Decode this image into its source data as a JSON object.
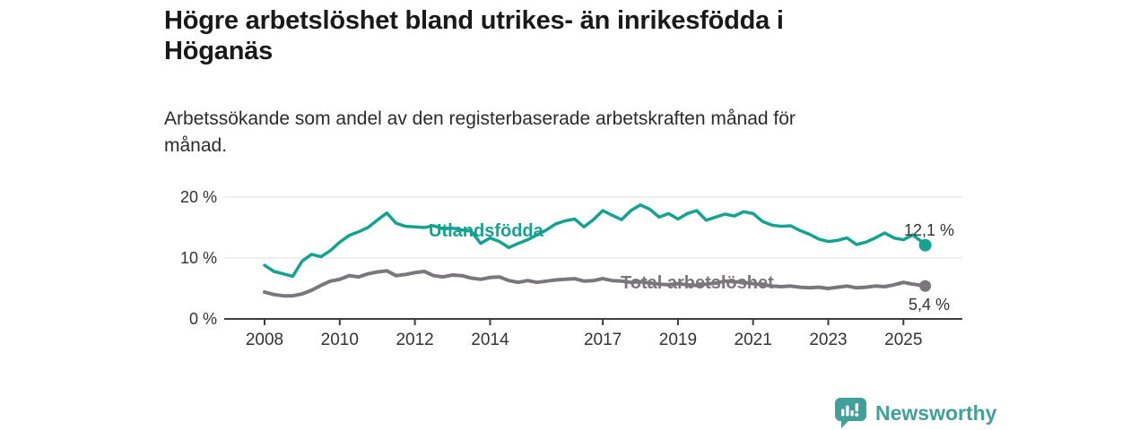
{
  "header": {
    "title_lines": [
      "Högre arbetslöshet bland utrikes- än inrikesfödda i",
      "Höganäs"
    ],
    "subtitle_lines": [
      "Arbetssökande som andel av den registerbaserade arbetskraften månad för",
      "månad."
    ]
  },
  "chart_data": {
    "type": "line",
    "title": "Högre arbetslöshet bland utrikes- än inrikesfödda i Höganäs",
    "subtitle": "Arbetssökande som andel av den registerbaserade arbetskraften månad för månad.",
    "unit": "%",
    "x_unit": "year (monthly data)",
    "xlim": [
      2007.6,
      2026.3
    ],
    "ylim": [
      0,
      22
    ],
    "grid": "horizontal",
    "legend": "inline-labels",
    "x": [
      2008,
      2008.25,
      2008.5,
      2008.75,
      2009,
      2009.25,
      2009.5,
      2009.75,
      2010,
      2010.25,
      2010.5,
      2010.75,
      2011,
      2011.25,
      2011.5,
      2011.75,
      2012,
      2012.25,
      2012.5,
      2012.75,
      2013,
      2013.25,
      2013.5,
      2013.75,
      2014,
      2014.25,
      2014.5,
      2014.75,
      2015,
      2015.25,
      2015.5,
      2015.75,
      2016,
      2016.25,
      2016.5,
      2016.75,
      2017,
      2017.25,
      2017.5,
      2017.75,
      2018,
      2018.25,
      2018.5,
      2018.75,
      2019,
      2019.25,
      2019.5,
      2019.75,
      2020,
      2020.25,
      2020.5,
      2020.75,
      2021,
      2021.25,
      2021.5,
      2021.75,
      2022,
      2022.25,
      2022.5,
      2022.75,
      2023,
      2023.25,
      2023.5,
      2023.75,
      2024,
      2024.25,
      2024.5,
      2024.75,
      2025,
      2025.25,
      2025.5,
      2025.58
    ],
    "series": [
      {
        "name": "Utlandsfödda",
        "color": "#14a292",
        "end_value_label": "12,1 %",
        "last_value": 12.1,
        "values": [
          8.8,
          7.8,
          7.4,
          7.0,
          9.5,
          10.6,
          10.2,
          11.2,
          12.6,
          13.7,
          14.3,
          15.0,
          16.2,
          17.4,
          15.7,
          15.2,
          15.1,
          15.0,
          15.3,
          14.8,
          14.9,
          14.6,
          14.4,
          12.4,
          13.3,
          12.7,
          11.7,
          12.4,
          13.0,
          13.8,
          14.6,
          15.6,
          16.1,
          16.4,
          15.1,
          16.3,
          17.8,
          17.0,
          16.3,
          17.8,
          18.7,
          18.0,
          16.7,
          17.3,
          16.4,
          17.3,
          17.8,
          16.2,
          16.7,
          17.2,
          16.9,
          17.6,
          17.3,
          16.0,
          15.4,
          15.2,
          15.3,
          14.5,
          13.9,
          13.1,
          12.7,
          12.9,
          13.3,
          12.2,
          12.6,
          13.3,
          14.1,
          13.3,
          13.0,
          13.8,
          12.6,
          12.1
        ]
      },
      {
        "name": "Total arbetslöshet",
        "color": "#7a777c",
        "end_value_label": "5,4 %",
        "last_value": 5.4,
        "values": [
          4.4,
          4.0,
          3.8,
          3.8,
          4.1,
          4.7,
          5.5,
          6.2,
          6.5,
          7.1,
          6.9,
          7.4,
          7.7,
          7.9,
          7.1,
          7.3,
          7.6,
          7.8,
          7.1,
          6.9,
          7.2,
          7.1,
          6.7,
          6.5,
          6.8,
          6.9,
          6.3,
          6.0,
          6.3,
          6.0,
          6.2,
          6.4,
          6.5,
          6.6,
          6.2,
          6.3,
          6.6,
          6.3,
          6.2,
          6.0,
          6.1,
          5.9,
          5.7,
          5.6,
          5.8,
          5.6,
          5.5,
          5.7,
          5.9,
          6.2,
          6.1,
          6.0,
          5.8,
          5.6,
          5.4,
          5.3,
          5.4,
          5.2,
          5.1,
          5.2,
          5.0,
          5.2,
          5.4,
          5.1,
          5.2,
          5.4,
          5.3,
          5.6,
          6.0,
          5.7,
          5.5,
          5.4
        ]
      }
    ],
    "x_ticks": [
      {
        "v": 2008,
        "label": "2008"
      },
      {
        "v": 2010,
        "label": "2010"
      },
      {
        "v": 2012,
        "label": "2012"
      },
      {
        "v": 2014,
        "label": "2014"
      },
      {
        "v": 2017,
        "label": "2017"
      },
      {
        "v": 2019,
        "label": "2019"
      },
      {
        "v": 2021,
        "label": "2021"
      },
      {
        "v": 2023,
        "label": "2023"
      },
      {
        "v": 2025,
        "label": "2025"
      }
    ],
    "y_ticks": [
      {
        "v": 0,
        "label": "0 %"
      },
      {
        "v": 10,
        "label": "10 %"
      },
      {
        "v": 20,
        "label": "20 %"
      }
    ]
  },
  "colors": {
    "accent_teal": "#14a292",
    "series_gray": "#7a777c",
    "grid": "#dedede",
    "axis": "#3d3d3d",
    "tick_text": "#333333",
    "brand_teal": "#41a09a"
  },
  "footer": {
    "brand_name": "Newsworthy"
  }
}
